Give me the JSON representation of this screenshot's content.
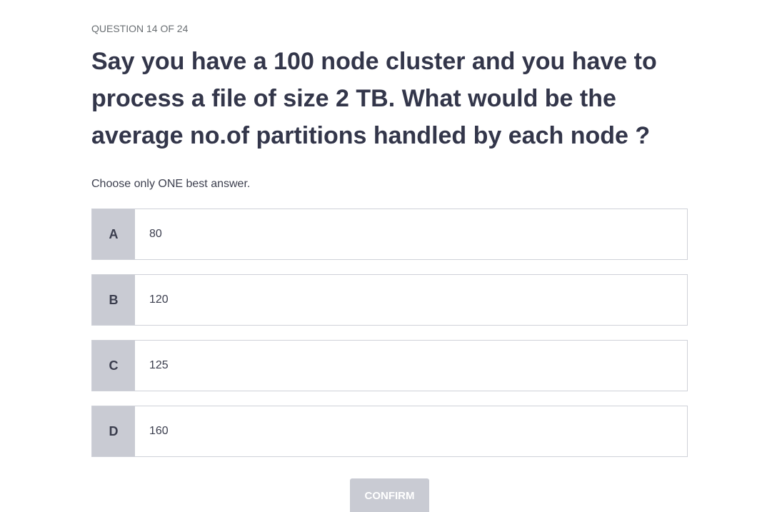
{
  "quiz": {
    "counter": "QUESTION 14 OF 24",
    "question": "Say you have a 100 node cluster and you have to process a file of size 2 TB. What would be the average no.of partitions handled by each node ?",
    "instruction": "Choose only ONE best answer.",
    "options": [
      {
        "letter": "A",
        "text": "80"
      },
      {
        "letter": "B",
        "text": "120"
      },
      {
        "letter": "C",
        "text": "125"
      },
      {
        "letter": "D",
        "text": "160"
      }
    ],
    "confirm_label": "CONFIRM"
  },
  "colors": {
    "letter_bg": "#c9cbd3",
    "border": "#cfd1d8",
    "text": "#33364a",
    "confirm_bg": "#c9cbd3"
  }
}
